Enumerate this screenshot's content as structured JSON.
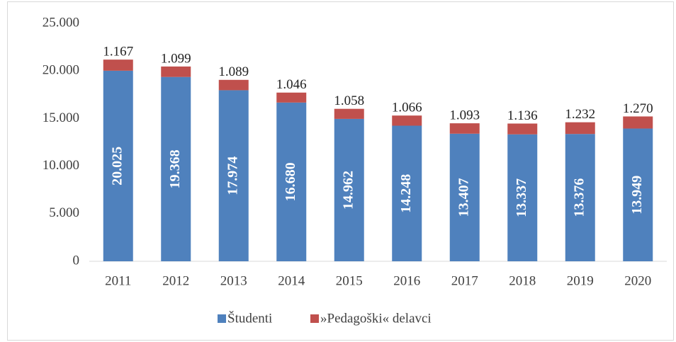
{
  "chart_data": {
    "type": "stacked_bar",
    "categories": [
      "2011",
      "2012",
      "2013",
      "2014",
      "2015",
      "2016",
      "2017",
      "2018",
      "2019",
      "2020"
    ],
    "series": [
      {
        "name": "Študenti",
        "color": "#4f81bd",
        "values": [
          20025,
          19368,
          17974,
          16680,
          14962,
          14248,
          13407,
          13337,
          13376,
          13949
        ],
        "value_labels": [
          "20.025",
          "19.368",
          "17.974",
          "16.680",
          "14.962",
          "14.248",
          "13.407",
          "13.337",
          "13.376",
          "13.949"
        ]
      },
      {
        "name": "»Pedagoški« delavci",
        "color": "#c0504d",
        "values": [
          1167,
          1099,
          1089,
          1046,
          1058,
          1066,
          1093,
          1136,
          1232,
          1270
        ],
        "value_labels": [
          "1.167",
          "1.099",
          "1.089",
          "1.046",
          "1.058",
          "1.066",
          "1.093",
          "1.136",
          "1.232",
          "1.270"
        ]
      }
    ],
    "ylim": [
      0,
      25000
    ],
    "yticks": [
      0,
      {
        "value": 5000,
        "label": "5.000"
      },
      {
        "value": 10000,
        "label": "10.000"
      },
      {
        "value": 15000,
        "label": "15.000"
      },
      {
        "value": 20000,
        "label": "20.000"
      },
      {
        "value": 25000,
        "label": "25.000"
      }
    ],
    "grid": false,
    "legend": "bottom"
  }
}
